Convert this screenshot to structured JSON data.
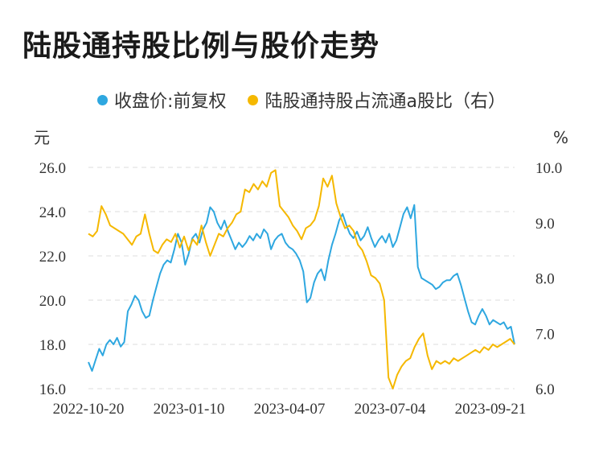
{
  "title": "陆股通持股比例与股价走势",
  "chart_data": {
    "type": "line",
    "left_unit": "元",
    "right_unit": "%",
    "y_left": {
      "min": 16.0,
      "max": 26.0,
      "ticks": [
        "16.0",
        "18.0",
        "20.0",
        "22.0",
        "24.0",
        "26.0"
      ]
    },
    "y_right": {
      "min": 6.0,
      "max": 10.0,
      "ticks": [
        "6.0",
        "7.0",
        "8.0",
        "9.0",
        "10.0"
      ]
    },
    "x_ticks": [
      "2022-10-20",
      "2023-01-10",
      "2023-04-07",
      "2023-07-04",
      "2023-09-21"
    ],
    "grid": true,
    "legend_position": "top",
    "series": [
      {
        "name": "收盘价:前复权",
        "axis": "left",
        "color": "#2ea7e0",
        "values": [
          17.2,
          16.8,
          17.3,
          17.8,
          17.5,
          18.0,
          18.2,
          18.0,
          18.3,
          17.9,
          18.1,
          19.5,
          19.8,
          20.2,
          20.0,
          19.5,
          19.2,
          19.3,
          20.0,
          20.6,
          21.2,
          21.6,
          21.8,
          21.7,
          22.3,
          23.0,
          22.6,
          21.6,
          22.1,
          22.8,
          23.0,
          22.6,
          23.2,
          23.5,
          24.2,
          24.0,
          23.5,
          23.2,
          23.6,
          23.1,
          22.7,
          22.3,
          22.6,
          22.4,
          22.6,
          22.9,
          22.7,
          23.0,
          22.8,
          23.2,
          23.0,
          22.3,
          22.7,
          22.9,
          23.0,
          22.6,
          22.4,
          22.3,
          22.1,
          21.8,
          21.3,
          19.9,
          20.1,
          20.8,
          21.2,
          21.4,
          20.9,
          21.8,
          22.5,
          23.0,
          23.6,
          23.9,
          23.4,
          23.0,
          22.8,
          23.1,
          22.7,
          22.9,
          23.3,
          22.8,
          22.4,
          22.7,
          22.9,
          22.6,
          23.0,
          22.4,
          22.7,
          23.3,
          23.9,
          24.2,
          23.7,
          24.3,
          21.5,
          21.0,
          20.9,
          20.8,
          20.7,
          20.5,
          20.6,
          20.8,
          20.9,
          20.9,
          21.1,
          21.2,
          20.7,
          20.1,
          19.5,
          19.0,
          18.9,
          19.3,
          19.6,
          19.3,
          18.9,
          19.1,
          19.0,
          18.9,
          19.0,
          18.7,
          18.8,
          18.0
        ]
      },
      {
        "name": "陆股通持股占流通a股比（右）",
        "axis": "right",
        "color": "#f5b800",
        "values": [
          8.8,
          8.75,
          8.85,
          9.3,
          9.15,
          8.95,
          8.9,
          8.85,
          8.8,
          8.7,
          8.6,
          8.75,
          8.8,
          9.15,
          8.8,
          8.5,
          8.45,
          8.6,
          8.7,
          8.65,
          8.8,
          8.55,
          8.75,
          8.5,
          8.7,
          8.6,
          8.95,
          8.65,
          8.4,
          8.6,
          8.8,
          8.75,
          8.9,
          9.0,
          9.15,
          9.2,
          9.6,
          9.55,
          9.7,
          9.6,
          9.75,
          9.65,
          9.9,
          9.95,
          9.3,
          9.2,
          9.1,
          8.95,
          8.85,
          8.7,
          8.9,
          8.95,
          9.05,
          9.3,
          9.8,
          9.65,
          9.85,
          9.35,
          9.1,
          8.9,
          8.95,
          8.85,
          8.6,
          8.5,
          8.3,
          8.05,
          8.0,
          7.9,
          7.6,
          6.2,
          6.0,
          6.25,
          6.4,
          6.5,
          6.55,
          6.75,
          6.9,
          7.0,
          6.6,
          6.35,
          6.5,
          6.45,
          6.5,
          6.45,
          6.55,
          6.5,
          6.55,
          6.6,
          6.65,
          6.7,
          6.65,
          6.75,
          6.7,
          6.8,
          6.75,
          6.8,
          6.85,
          6.9,
          6.8
        ]
      }
    ]
  }
}
